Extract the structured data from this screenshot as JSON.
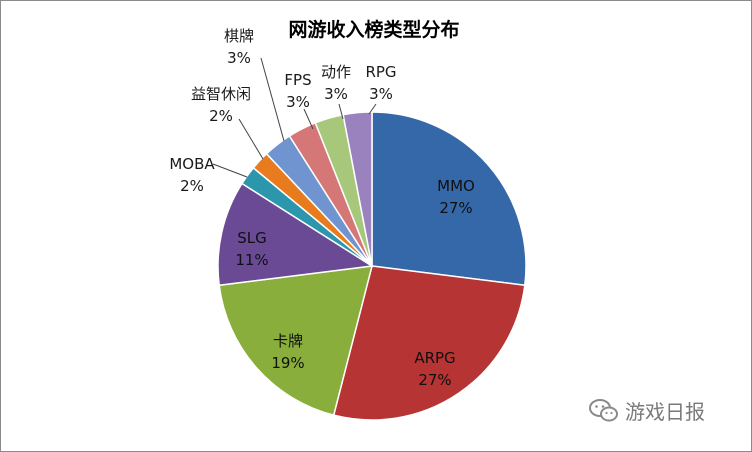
{
  "chart_data": {
    "type": "pie",
    "title": "网游收入榜类型分布",
    "slices": [
      {
        "name": "MMO",
        "value": 27,
        "label": "27%",
        "color": "#3568a8"
      },
      {
        "name": "ARPG",
        "value": 27,
        "label": "27%",
        "color": "#b63433"
      },
      {
        "name": "卡牌",
        "value": 19,
        "label": "19%",
        "color": "#8aae3c"
      },
      {
        "name": "SLG",
        "value": 11,
        "label": "11%",
        "color": "#6a4a95"
      },
      {
        "name": "MOBA",
        "value": 2,
        "label": "2%",
        "color": "#2c96ad"
      },
      {
        "name": "益智休闲",
        "value": 2,
        "label": "2%",
        "color": "#e77b1e"
      },
      {
        "name": "棋牌",
        "value": 3,
        "label": "3%",
        "color": "#6f94cf"
      },
      {
        "name": "FPS",
        "value": 3,
        "label": "3%",
        "color": "#d57677"
      },
      {
        "name": "动作",
        "value": 3,
        "label": "3%",
        "color": "#a7c87a"
      },
      {
        "name": "RPG",
        "value": 3,
        "label": "3%",
        "color": "#9a82bf"
      }
    ]
  },
  "watermark": {
    "text": "游戏日报",
    "icon": "wechat-icon"
  }
}
